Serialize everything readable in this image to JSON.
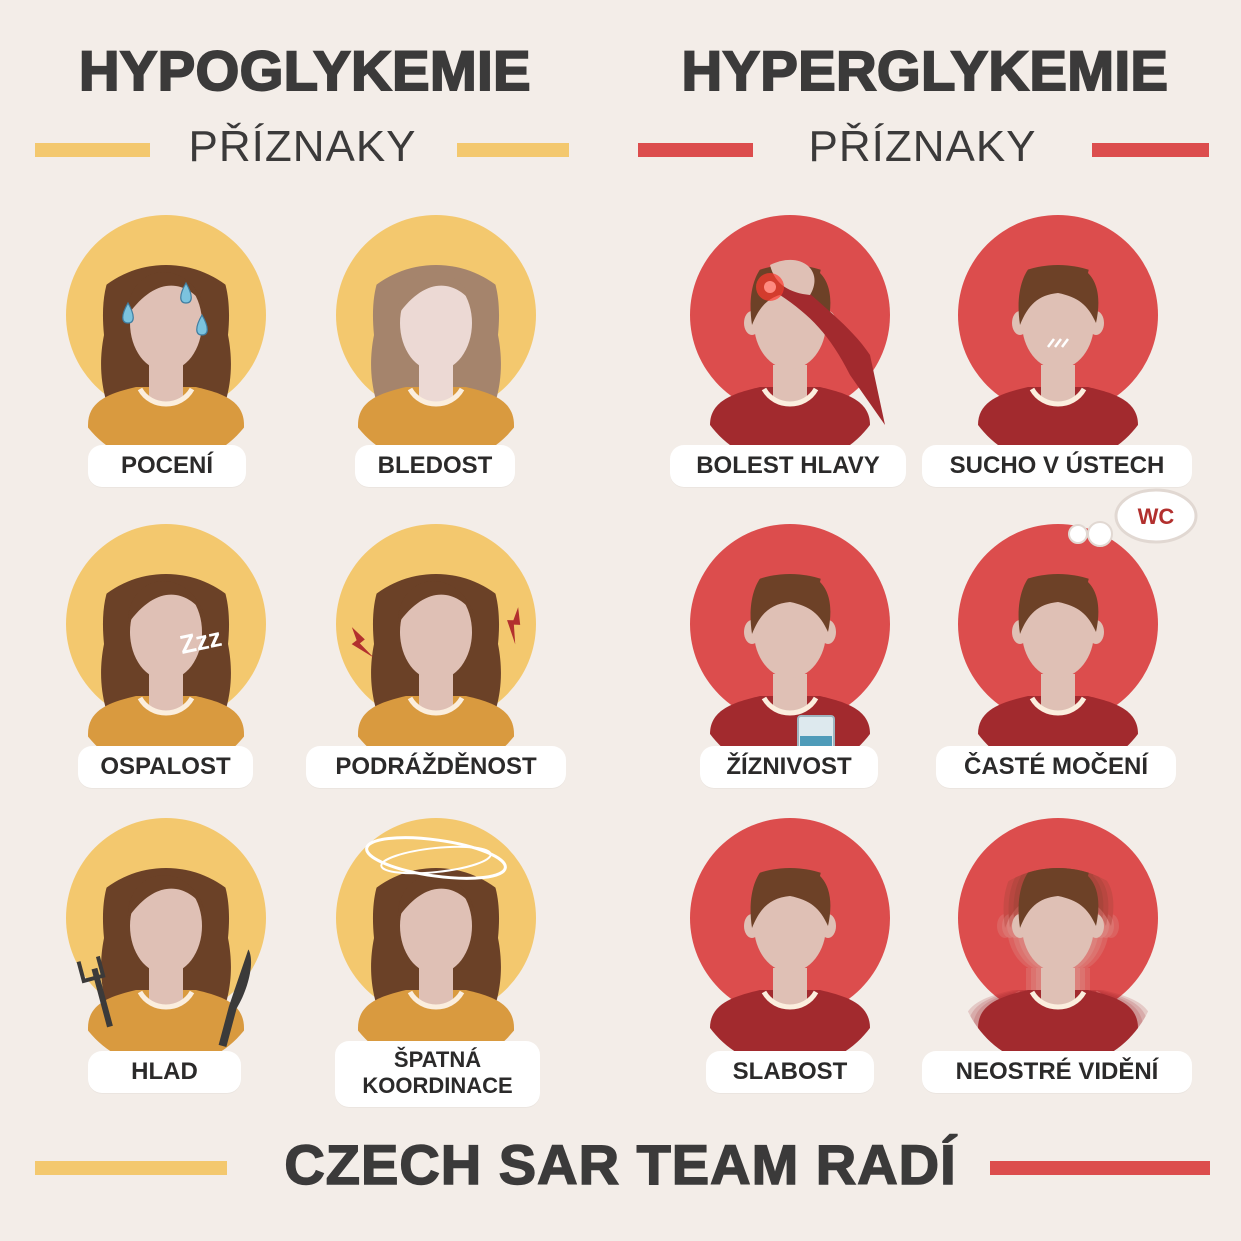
{
  "left": {
    "title": "HYPOGLYKEMIE",
    "subtitle": "PŘÍZNAKY",
    "accent": "#f3c86e",
    "symptoms": [
      {
        "label": "POCENÍ",
        "icon": "sweat-drops-icon"
      },
      {
        "label": "BLEDOST",
        "icon": "pale-face-icon"
      },
      {
        "label": "OSPALOST",
        "icon": "zzz-icon"
      },
      {
        "label": "PODRÁŽDĚNOST",
        "icon": "lightning-icon"
      },
      {
        "label": "HLAD",
        "icon": "fork-knife-icon"
      },
      {
        "label": "ŠPATNÁ KOORDINACE",
        "icon": "dizzy-rings-icon"
      }
    ]
  },
  "right": {
    "title": "HYPERGLYKEMIE",
    "subtitle": "PŘÍZNAKY",
    "accent": "#dc4d4d",
    "symptoms": [
      {
        "label": "BOLEST HLAVY",
        "icon": "headache-icon"
      },
      {
        "label": "SUCHO V ÚSTECH",
        "icon": "dry-mouth-icon"
      },
      {
        "label": "ŽÍZNIVOST",
        "icon": "water-glass-icon"
      },
      {
        "label": "ČASTÉ MOČENÍ",
        "icon": "wc-thought-bubble-icon"
      },
      {
        "label": "SLABOST",
        "icon": "weak-person-icon"
      },
      {
        "label": "NEOSTRÉ VIDĚNÍ",
        "icon": "blurred-person-icon"
      }
    ],
    "wc_text": "WC"
  },
  "footer": "CZECH SAR TEAM RADÍ"
}
